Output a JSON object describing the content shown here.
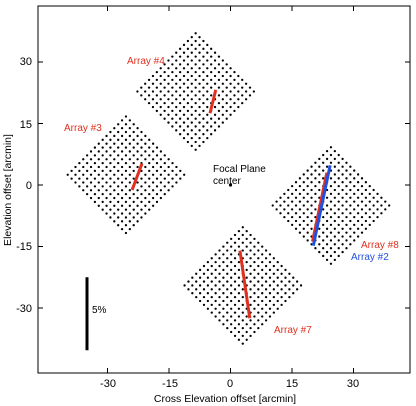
{
  "chart_data": {
    "type": "scatter",
    "xlabel": "Cross Elevation offset [arcmin]",
    "ylabel": "Elevation offset [arcmin]",
    "xlim": [
      -40,
      40
    ],
    "ylim": [
      -42,
      38
    ],
    "xticks": [
      -30,
      -15,
      0,
      15,
      30
    ],
    "yticks": [
      -30,
      -15,
      0,
      15,
      30
    ],
    "xtick_labels": [
      "-30",
      "-15",
      "0",
      "15",
      "30"
    ],
    "ytick_labels": [
      "-30",
      "-15",
      "0",
      "15",
      "30"
    ],
    "grid": false,
    "arrays": [
      {
        "name": "Array #4",
        "center": [
          -8.5,
          22.8
        ],
        "half_diagonal": 14.2,
        "grid_n": 16,
        "label_color": "#e03020"
      },
      {
        "name": "Array #3",
        "center": [
          -25.5,
          2.5
        ],
        "half_diagonal": 14.2,
        "grid_n": 16,
        "label_color": "#e03020"
      },
      {
        "name": "Array #8",
        "center": [
          24.5,
          -5.0
        ],
        "half_diagonal": 14.2,
        "grid_n": 16,
        "label_color": "#e03020"
      },
      {
        "name": "Array #7",
        "center": [
          3.0,
          -24.5
        ],
        "half_diagonal": 14.2,
        "grid_n": 16,
        "label_color": "#e03020"
      }
    ],
    "vectors": [
      {
        "array": "Array #4",
        "color": "#e03020",
        "x1": -5.0,
        "y1": 17.5,
        "x2": -3.6,
        "y2": 23.2
      },
      {
        "array": "Array #3",
        "color": "#e03020",
        "x1": -24.0,
        "y1": -1.2,
        "x2": -21.6,
        "y2": 5.2
      },
      {
        "array": "Array #8",
        "color": "#e03020",
        "x1": 20.0,
        "y1": -13.8,
        "x2": 23.5,
        "y2": 3.0
      },
      {
        "array": "Array #2",
        "color": "#2050e0",
        "x1": 20.2,
        "y1": -14.8,
        "x2": 24.3,
        "y2": 4.8
      },
      {
        "array": "Array #7",
        "color": "#e03020",
        "x1": 2.3,
        "y1": -16.0,
        "x2": 4.7,
        "y2": -32.5
      }
    ],
    "scale_bar": {
      "label": "5%",
      "x": -35.0,
      "y_bottom": -40.3,
      "y_top": -22.5,
      "color": "#000000"
    },
    "annotations": {
      "focal_plane_center": {
        "lines": [
          "Focal Plane",
          "center"
        ],
        "point": [
          0,
          0
        ],
        "color": "#000000"
      },
      "array_2_label": {
        "text": "Array #2",
        "color": "#2050e0"
      }
    }
  }
}
